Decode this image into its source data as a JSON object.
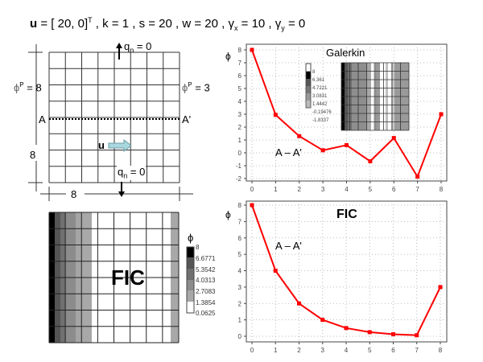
{
  "header": {
    "vector_label": "u",
    "formula": " = [ 20, 0]",
    "transpose": "T",
    "params": " , k = 1 , s = 20 , w = 20 , ",
    "gamma_x": "γ",
    "gamma_x_sub": "x",
    "gamma_x_val": " = 10 , ",
    "gamma_y": "γ",
    "gamma_y_sub": "y",
    "gamma_y_val": " = 0"
  },
  "domain_diagram": {
    "top_flux": "q",
    "top_flux_sub": "n",
    "top_flux_val": " = 0",
    "bottom_flux": "q",
    "bottom_flux_sub": "n",
    "bottom_flux_val": " = 0",
    "left_bc": "ϕ",
    "left_bc_sup": "P",
    "left_bc_val": " = 8",
    "right_bc": "ϕ",
    "right_bc_sup": "P",
    "right_bc_val": " = 3",
    "section_start": "A",
    "section_end": "A'",
    "velocity_label": "u",
    "height_dim": "8",
    "width_dim": "8",
    "grid_cells": 8
  },
  "fic_map": {
    "title": "FIC",
    "colorbar_symbol": "ϕ",
    "colorbar_labels": [
      "8",
      "6.6771",
      "5.3542",
      "4.0313",
      "2.7083",
      "1.3854",
      "0.0625"
    ]
  },
  "galerkin_plot": {
    "title": "Galerkin",
    "section_label": "A – A'",
    "ylabel": "ϕ",
    "colorbar_labels": [
      "8",
      "6.361",
      "4.7221",
      "3.0831",
      "1.4442",
      "-0.19476",
      "-1.8337"
    ]
  },
  "fic_plot": {
    "title": "FIC",
    "section_label": "A – A'",
    "ylabel": "ϕ"
  },
  "colors": {
    "line": "#ff0000",
    "grid": "#aaaaaa",
    "frame": "#666666"
  },
  "chart_data": [
    {
      "type": "line",
      "title": "Galerkin",
      "annotation": "A – A'",
      "xlabel": "",
      "ylabel": "ϕ",
      "x": [
        0,
        1,
        2,
        3,
        4,
        5,
        6,
        7,
        8
      ],
      "series": [
        {
          "name": "Galerkin A–A'",
          "values": [
            8,
            2.95,
            1.3,
            0.2,
            0.6,
            -0.65,
            1.15,
            -1.85,
            3
          ]
        }
      ],
      "xlim": [
        0,
        8
      ],
      "ylim": [
        -2,
        8
      ],
      "xticks": [
        0,
        1,
        2,
        3,
        4,
        5,
        6,
        7,
        8
      ],
      "yticks": [
        -2,
        -1,
        0,
        1,
        2,
        3,
        4,
        5,
        6,
        7,
        8
      ],
      "grid": true,
      "color": "#ff0000"
    },
    {
      "type": "line",
      "title": "FIC",
      "annotation": "A – A'",
      "xlabel": "",
      "ylabel": "ϕ",
      "x": [
        0,
        1,
        2,
        3,
        4,
        5,
        6,
        7,
        8
      ],
      "series": [
        {
          "name": "FIC A–A'",
          "values": [
            8,
            4,
            2,
            1,
            0.5,
            0.25,
            0.125,
            0.0625,
            3
          ]
        }
      ],
      "xlim": [
        0,
        8
      ],
      "ylim": [
        0,
        8
      ],
      "xticks": [
        0,
        1,
        2,
        3,
        4,
        5,
        6,
        7,
        8
      ],
      "yticks": [
        0,
        1,
        2,
        3,
        4,
        5,
        6,
        7,
        8
      ],
      "grid": true,
      "color": "#ff0000"
    }
  ]
}
